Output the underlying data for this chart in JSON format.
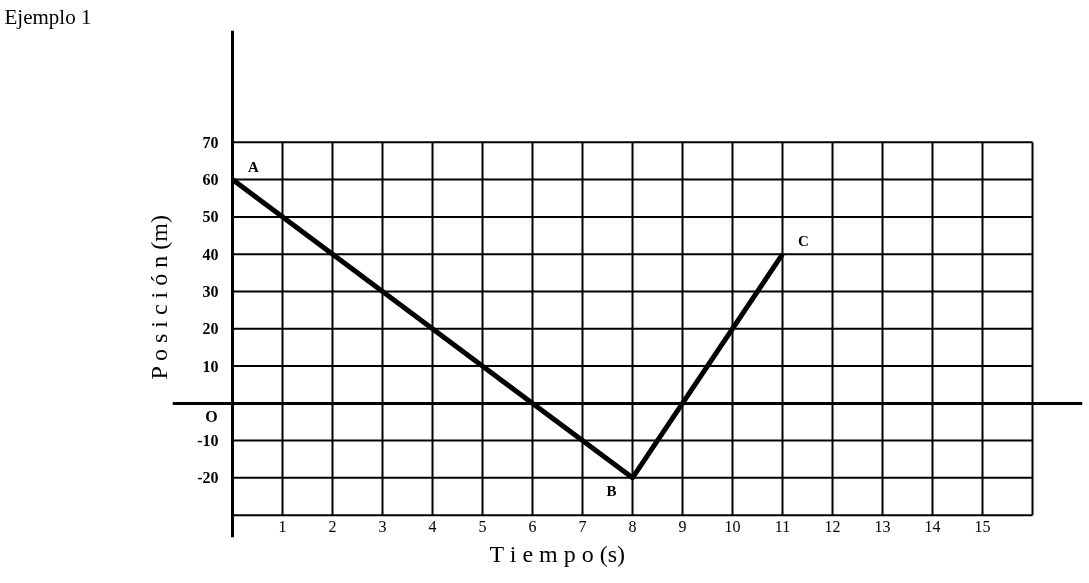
{
  "chart_data": {
    "type": "line",
    "title": "Ejemplo 1",
    "xlabel": "T i e m p o (s)",
    "ylabel": "P o s i c i ó n (m)",
    "x": [
      0,
      8,
      11
    ],
    "series": [
      {
        "color": "#000000",
        "values": [
          60,
          -20,
          40
        ]
      }
    ],
    "xlim": [
      -1.2,
      17
    ],
    "ylim": [
      -36,
      100
    ],
    "xticks": [
      {
        "value": 0,
        "label": null
      },
      1,
      2,
      3,
      4,
      5,
      6,
      7,
      8,
      9,
      10,
      11,
      12,
      13,
      14,
      15,
      {
        "value": 16,
        "label": null
      }
    ],
    "yticks": [
      {
        "value": -30,
        "label": null
      },
      -20,
      -10,
      {
        "value": 0,
        "label": null
      },
      10,
      20,
      30,
      40,
      50,
      60,
      70
    ],
    "grid": true,
    "line_style": "solid",
    "annotations": [
      {
        "text": "A",
        "x": 0,
        "y": 60
      },
      {
        "text": "B",
        "x": 8,
        "y": -20
      },
      {
        "text": "C",
        "x": 11,
        "y": 40
      },
      "O"
    ]
  }
}
